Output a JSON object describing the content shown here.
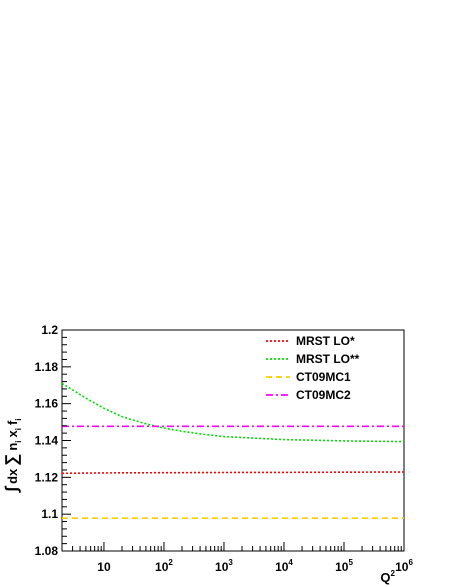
{
  "chart_data": {
    "type": "line",
    "title": "",
    "xlabel": "Q",
    "xlabel_superscript": "2",
    "ylabel_parts": [
      "∫",
      "dx",
      "∑",
      "n",
      "i",
      "x",
      "i",
      "f",
      "i"
    ],
    "x_scale": "log",
    "xlim": [
      2,
      1000000
    ],
    "ylim": [
      1.08,
      1.2
    ],
    "grid": false,
    "legend_position": "top-right",
    "y_ticks": [
      {
        "value": 1.08,
        "label": "1.08"
      },
      {
        "value": 1.1,
        "label": "1.1"
      },
      {
        "value": 1.12,
        "label": "1.12"
      },
      {
        "value": 1.14,
        "label": "1.14"
      },
      {
        "value": 1.16,
        "label": "1.16"
      },
      {
        "value": 1.18,
        "label": "1.18"
      },
      {
        "value": 1.2,
        "label": "1.2"
      }
    ],
    "x_ticks": [
      {
        "value": 10,
        "base": "10",
        "exp": ""
      },
      {
        "value": 100,
        "base": "10",
        "exp": "2"
      },
      {
        "value": 1000,
        "base": "10",
        "exp": "3"
      },
      {
        "value": 10000,
        "base": "10",
        "exp": "4"
      },
      {
        "value": 100000,
        "base": "10",
        "exp": "5"
      },
      {
        "value": 1000000,
        "base": "10",
        "exp": "6"
      }
    ],
    "series": [
      {
        "name": "MRST LO*",
        "color": "#ff0000",
        "dash": "dotted",
        "x": [
          2,
          10,
          100,
          1000,
          10000,
          100000,
          1000000
        ],
        "y": [
          1.1222,
          1.1224,
          1.1225,
          1.1226,
          1.1227,
          1.1228,
          1.1229
        ]
      },
      {
        "name": "MRST LO**",
        "color": "#00dd00",
        "dash": "dotted",
        "x": [
          2,
          3,
          5,
          10,
          20,
          50,
          100,
          200,
          500,
          1000,
          10000,
          100000,
          1000000
        ],
        "y": [
          1.171,
          1.1675,
          1.163,
          1.1575,
          1.153,
          1.149,
          1.1468,
          1.145,
          1.1432,
          1.1421,
          1.1405,
          1.1398,
          1.1394
        ]
      },
      {
        "name": "CT09MC1",
        "color": "#ffcc00",
        "dash": "dashed",
        "x": [
          2,
          1000000
        ],
        "y": [
          1.0978,
          1.0978
        ]
      },
      {
        "name": "CT09MC2",
        "color": "#ff00ff",
        "dash": "dashdot",
        "x": [
          2,
          1000000
        ],
        "y": [
          1.1477,
          1.1477
        ]
      }
    ]
  }
}
